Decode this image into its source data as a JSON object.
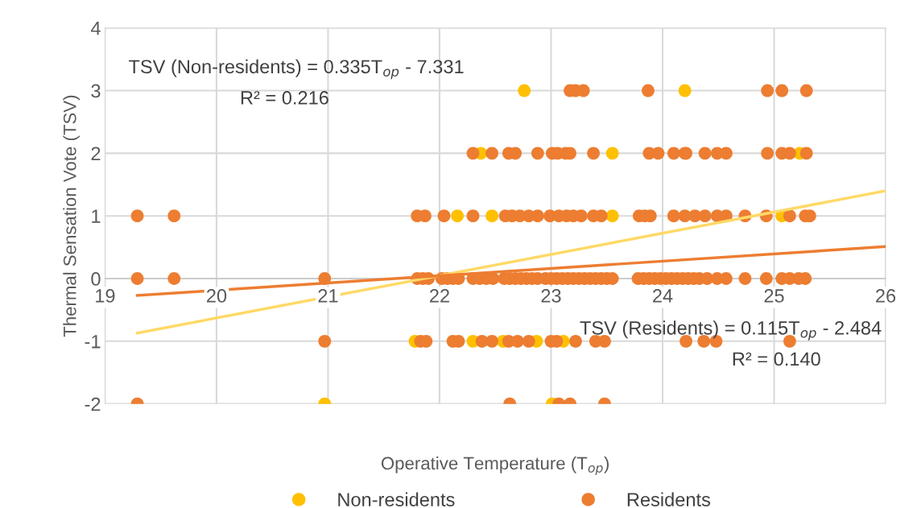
{
  "chart_data": {
    "type": "scatter",
    "xlabel": "Operative Temperature (T$_{op}$)",
    "ylabel": "Thermal Sensation Vote (TSV)",
    "xlim": [
      19,
      26
    ],
    "ylim": [
      -2,
      4
    ],
    "xticks": [
      19,
      20,
      21,
      22,
      23,
      24,
      25,
      26
    ],
    "yticks": [
      -2,
      -1,
      0,
      1,
      2,
      3,
      4
    ],
    "grid": true,
    "legend": "bottom",
    "marker": "circle",
    "annotations": [
      "TSV (Non-residents) = 0.335T$_{op}$ - 7.331",
      "R² = 0.216",
      "TSV (Residents) = 0.115T$_{op}$ - 2.484",
      "R² = 0.140"
    ],
    "series": [
      {
        "name": "Non-residents",
        "color": "#ffc000",
        "x": [
          22.76,
          24.2,
          22.37,
          23.55,
          25.23,
          22.16,
          22.47,
          23.55,
          25.07,
          21.78,
          22.3,
          22.57,
          22.87,
          23.11,
          20.97,
          23.01
        ],
        "values": [
          3,
          3,
          2,
          2,
          2,
          1,
          1,
          1,
          1,
          -1,
          -1,
          -1,
          -1,
          -1,
          -2,
          -2
        ]
      },
      {
        "name": "Residents",
        "color": "#ed7d31",
        "x": [
          23.17,
          23.22,
          23.29,
          23.87,
          24.94,
          25.07,
          25.29,
          22.3,
          22.47,
          22.62,
          22.68,
          22.88,
          23.01,
          23.06,
          23.13,
          23.17,
          23.38,
          23.88,
          23.96,
          24.1,
          24.2,
          24.21,
          24.38,
          24.49,
          24.57,
          24.94,
          25.07,
          25.14,
          25.29,
          19.29,
          19.62,
          21.8,
          21.87,
          22.04,
          22.3,
          22.59,
          22.65,
          22.72,
          22.8,
          22.88,
          22.99,
          23.07,
          23.14,
          23.2,
          23.27,
          23.38,
          23.45,
          23.79,
          23.84,
          23.89,
          24.1,
          24.2,
          24.29,
          24.38,
          24.49,
          24.57,
          24.74,
          24.93,
          25.14,
          25.28,
          25.32,
          19.29,
          19.62,
          20.97,
          21.8,
          21.85,
          21.9,
          22.02,
          22.07,
          22.12,
          22.17,
          22.3,
          22.36,
          22.42,
          22.48,
          22.58,
          22.63,
          22.68,
          22.73,
          22.78,
          22.83,
          22.88,
          22.95,
          23.0,
          23.05,
          23.1,
          23.15,
          23.2,
          23.25,
          23.3,
          23.35,
          23.4,
          23.45,
          23.5,
          23.55,
          23.78,
          23.83,
          23.88,
          23.93,
          23.98,
          24.03,
          24.08,
          24.13,
          24.18,
          24.23,
          24.28,
          24.33,
          24.4,
          24.49,
          24.57,
          24.74,
          24.93,
          25.07,
          25.14,
          25.22,
          25.28,
          20.97,
          21.83,
          21.88,
          22.12,
          22.17,
          22.38,
          22.47,
          22.62,
          22.7,
          22.8,
          23.0,
          23.05,
          23.22,
          23.4,
          23.48,
          24.21,
          24.37,
          24.48,
          25.14,
          19.29,
          22.63,
          23.07,
          23.17,
          23.48
        ],
        "values": [
          3,
          3,
          3,
          3,
          3,
          3,
          3,
          2,
          2,
          2,
          2,
          2,
          2,
          2,
          2,
          2,
          2,
          2,
          2,
          2,
          2,
          2,
          2,
          2,
          2,
          2,
          2,
          2,
          2,
          1,
          1,
          1,
          1,
          1,
          1,
          1,
          1,
          1,
          1,
          1,
          1,
          1,
          1,
          1,
          1,
          1,
          1,
          1,
          1,
          1,
          1,
          1,
          1,
          1,
          1,
          1,
          1,
          1,
          1,
          1,
          1,
          0,
          0,
          0,
          0,
          0,
          0,
          0,
          0,
          0,
          0,
          0,
          0,
          0,
          0,
          0,
          0,
          0,
          0,
          0,
          0,
          0,
          0,
          0,
          0,
          0,
          0,
          0,
          0,
          0,
          0,
          0,
          0,
          0,
          0,
          0,
          0,
          0,
          0,
          0,
          0,
          0,
          0,
          0,
          0,
          0,
          0,
          0,
          0,
          0,
          0,
          0,
          0,
          0,
          0,
          0,
          -1,
          -1,
          -1,
          -1,
          -1,
          -1,
          -1,
          -1,
          -1,
          -1,
          -1,
          -1,
          -1,
          -1,
          -1,
          -1,
          -1,
          -1,
          -1,
          -2,
          -2,
          -2,
          -2,
          -2
        ]
      },
      {
        "type": "line",
        "marker": "none",
        "color": "#ffd966",
        "x": [
          19.29,
          26
        ],
        "values": [
          -0.87,
          1.4
        ]
      },
      {
        "type": "line",
        "marker": "none",
        "color": "#ed7d31",
        "x": [
          19.29,
          26
        ],
        "values": [
          -0.27,
          0.51
        ]
      }
    ]
  }
}
